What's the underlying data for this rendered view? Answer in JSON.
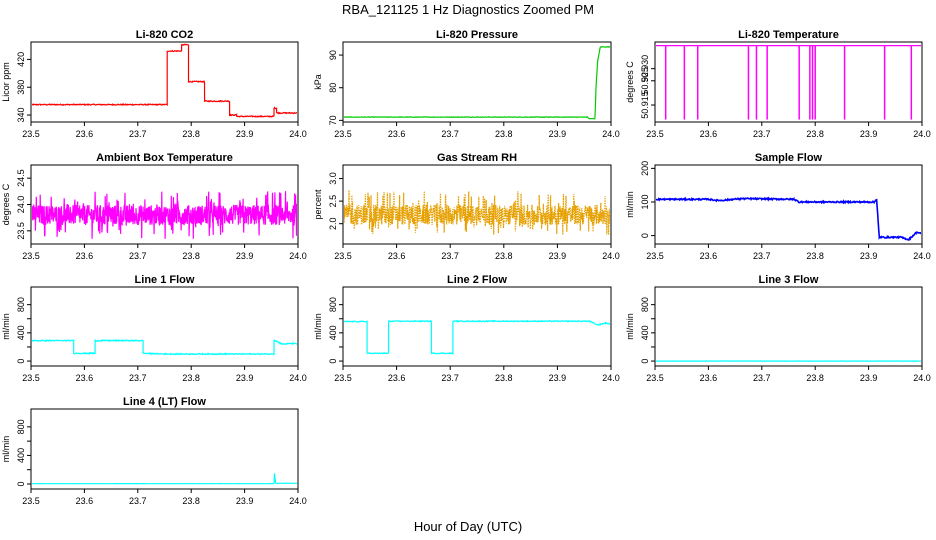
{
  "figure": {
    "title": "RBA_121125  1 Hz Diagnostics Zoomed PM",
    "xlabel": "Hour of Day (UTC)"
  },
  "chart_data": [
    {
      "id": "co2",
      "type": "line",
      "title": "Li-820 CO2",
      "ylabel": "Licor ppm",
      "color": "#ff0000",
      "xlim": [
        23.5,
        24.0
      ],
      "ylim": [
        330,
        445
      ],
      "xticks": [
        23.5,
        23.6,
        23.7,
        23.8,
        23.9,
        24.0
      ],
      "xtick_labels": [
        "23.5",
        "23.6",
        "23.7",
        "23.8",
        "23.9",
        "24.0"
      ],
      "yticks": [
        340,
        380,
        420
      ],
      "ytick_labels": [
        "340",
        "380",
        "420"
      ],
      "x": [
        23.5,
        23.755,
        23.755,
        23.782,
        23.782,
        23.795,
        23.795,
        23.825,
        23.825,
        23.872,
        23.872,
        23.885,
        23.885,
        23.955,
        23.955,
        23.96,
        23.96,
        24.0
      ],
      "y": [
        355,
        355,
        432,
        432,
        441,
        441,
        388,
        388,
        360,
        360,
        340,
        340,
        338,
        338,
        350,
        350,
        343,
        343
      ],
      "noise": 1.5
    },
    {
      "id": "pressure",
      "type": "line",
      "title": "Li-820 Pressure",
      "ylabel": "kPa",
      "color": "#00cc00",
      "xlim": [
        23.5,
        24.0
      ],
      "ylim": [
        69.5,
        94
      ],
      "xticks": [
        23.5,
        23.6,
        23.7,
        23.8,
        23.9,
        24.0
      ],
      "xtick_labels": [
        "23.5",
        "23.6",
        "23.7",
        "23.8",
        "23.9",
        "24.0"
      ],
      "yticks": [
        70,
        80,
        90
      ],
      "ytick_labels": [
        "70",
        "80",
        "90"
      ],
      "x": [
        23.5,
        23.955,
        23.96,
        23.97,
        23.972,
        23.975,
        23.98,
        24.0
      ],
      "y": [
        71,
        71,
        70.5,
        70.5,
        80,
        88,
        92.5,
        92.5
      ],
      "noise": 0.15
    },
    {
      "id": "temp",
      "type": "line",
      "title": "Li-820 Temperature",
      "ylabel": "degrees C",
      "color": "#ff00ff",
      "xlim": [
        23.5,
        24.0
      ],
      "ylim": [
        50.908,
        50.941
      ],
      "xticks": [
        23.5,
        23.6,
        23.7,
        23.8,
        23.9,
        24.0
      ],
      "xtick_labels": [
        "23.5",
        "23.6",
        "23.7",
        "23.8",
        "23.9",
        "24.0"
      ],
      "yticks": [
        50.915,
        50.925,
        50.93
      ],
      "ytick_labels": [
        "50.915",
        "50.925",
        "50.930"
      ],
      "baseline": 50.9395,
      "low": 50.909,
      "dips": [
        23.52,
        23.555,
        23.58,
        23.675,
        23.69,
        23.71,
        23.77,
        23.79,
        23.795,
        23.8,
        23.855,
        23.93,
        23.98
      ],
      "partial_dip": {
        "x": 23.855,
        "y": 50.916
      },
      "noise": 0
    },
    {
      "id": "ambient",
      "type": "line",
      "title": "Ambient Box Temperature",
      "ylabel": "degrees C",
      "color": "#ff00ff",
      "xlim": [
        23.5,
        24.0
      ],
      "ylim": [
        23.25,
        24.75
      ],
      "xticks": [
        23.5,
        23.6,
        23.7,
        23.8,
        23.9,
        24.0
      ],
      "xtick_labels": [
        "23.5",
        "23.6",
        "23.7",
        "23.8",
        "23.9",
        "24.0"
      ],
      "yticks": [
        23.5,
        24.0,
        24.5
      ],
      "ytick_labels": [
        "23.5",
        "24.0",
        "24.5"
      ],
      "x": [
        23.5,
        24.0
      ],
      "y": [
        23.8,
        23.8
      ],
      "noise": 0.35
    },
    {
      "id": "rh",
      "type": "line",
      "title": "Gas Stream RH",
      "ylabel": "percent",
      "color": "#e6a000",
      "xlim": [
        23.5,
        24.0
      ],
      "ylim": [
        1.55,
        3.3
      ],
      "xticks": [
        23.5,
        23.6,
        23.7,
        23.8,
        23.9,
        24.0
      ],
      "xtick_labels": [
        "23.5",
        "23.6",
        "23.7",
        "23.8",
        "23.9",
        "24.0"
      ],
      "yticks": [
        2.0,
        2.5,
        3.0
      ],
      "ytick_labels": [
        "2.0",
        "2.5",
        "3.0"
      ],
      "x": [
        23.5,
        24.0
      ],
      "y": [
        2.15,
        2.15
      ],
      "noise": 0.45
    },
    {
      "id": "sample",
      "type": "line",
      "title": "Sample Flow",
      "ylabel": "ml/min",
      "color": "#0000ff",
      "xlim": [
        23.5,
        24.0
      ],
      "ylim": [
        -25,
        210
      ],
      "xticks": [
        23.5,
        23.6,
        23.7,
        23.8,
        23.9,
        24.0
      ],
      "xtick_labels": [
        "23.5",
        "23.6",
        "23.7",
        "23.8",
        "23.9",
        "24.0"
      ],
      "yticks": [
        0,
        100,
        200
      ],
      "ytick_labels": [
        "0",
        "100",
        "200"
      ],
      "x": [
        23.5,
        23.6,
        23.62,
        23.66,
        23.76,
        23.77,
        23.91,
        23.915,
        23.92,
        23.96,
        23.975,
        23.99,
        24.0
      ],
      "y": [
        108,
        108,
        104,
        110,
        108,
        100,
        100,
        108,
        -5,
        -5,
        -12,
        10,
        5
      ],
      "noise": 4
    },
    {
      "id": "line1",
      "type": "line",
      "title": "Line 1 Flow",
      "ylabel": "ml/min",
      "color": "#00ffff",
      "xlim": [
        23.5,
        24.0
      ],
      "ylim": [
        -70,
        1050
      ],
      "xticks": [
        23.5,
        23.6,
        23.7,
        23.8,
        23.9,
        24.0
      ],
      "xtick_labels": [
        "23.5",
        "23.6",
        "23.7",
        "23.8",
        "23.9",
        "24.0"
      ],
      "yticks": [
        0,
        200,
        400,
        600,
        800
      ],
      "ytick_labels": [
        "0",
        "400",
        "800"
      ],
      "x": [
        23.5,
        23.58,
        23.58,
        23.62,
        23.62,
        23.71,
        23.71,
        23.75,
        23.955,
        23.955,
        23.97,
        23.99,
        24.0
      ],
      "y": [
        290,
        290,
        110,
        110,
        290,
        290,
        110,
        100,
        100,
        300,
        240,
        250,
        240
      ],
      "noise": 15
    },
    {
      "id": "line2",
      "type": "line",
      "title": "Line 2 Flow",
      "ylabel": "ml/min",
      "color": "#00ffff",
      "xlim": [
        23.5,
        24.0
      ],
      "ylim": [
        -70,
        1050
      ],
      "xticks": [
        23.5,
        23.6,
        23.7,
        23.8,
        23.9,
        24.0
      ],
      "xtick_labels": [
        "23.5",
        "23.6",
        "23.7",
        "23.8",
        "23.9",
        "24.0"
      ],
      "yticks": [
        0,
        200,
        400,
        600,
        800
      ],
      "ytick_labels": [
        "0",
        "400",
        "800"
      ],
      "x": [
        23.5,
        23.545,
        23.545,
        23.585,
        23.585,
        23.665,
        23.665,
        23.705,
        23.705,
        23.96,
        23.975,
        23.99,
        24.0
      ],
      "y": [
        560,
        560,
        110,
        110,
        565,
        565,
        110,
        110,
        565,
        565,
        510,
        540,
        520
      ],
      "noise": 12
    },
    {
      "id": "line3",
      "type": "line",
      "title": "Line 3 Flow",
      "ylabel": "ml/min",
      "color": "#00ffff",
      "xlim": [
        23.5,
        24.0
      ],
      "ylim": [
        -70,
        1050
      ],
      "xticks": [
        23.5,
        23.6,
        23.7,
        23.8,
        23.9,
        24.0
      ],
      "xtick_labels": [
        "23.5",
        "23.6",
        "23.7",
        "23.8",
        "23.9",
        "24.0"
      ],
      "yticks": [
        0,
        200,
        400,
        600,
        800
      ],
      "ytick_labels": [
        "0",
        "400",
        "800"
      ],
      "x": [
        23.5,
        24.0
      ],
      "y": [
        0,
        0
      ],
      "noise": 3
    },
    {
      "id": "line4",
      "type": "line",
      "title": "Line 4 (LT) Flow",
      "ylabel": "ml/min",
      "color": "#00ffff",
      "xlim": [
        23.5,
        24.0
      ],
      "ylim": [
        -70,
        1050
      ],
      "xticks": [
        23.5,
        23.6,
        23.7,
        23.8,
        23.9,
        24.0
      ],
      "xtick_labels": [
        "23.5",
        "23.6",
        "23.7",
        "23.8",
        "23.9",
        "24.0"
      ],
      "yticks": [
        0,
        200,
        400,
        600,
        800
      ],
      "ytick_labels": [
        "0",
        "400",
        "800"
      ],
      "x": [
        23.5,
        23.955,
        23.956,
        23.958,
        24.0
      ],
      "y": [
        5,
        5,
        150,
        10,
        10
      ],
      "noise": 3
    }
  ]
}
